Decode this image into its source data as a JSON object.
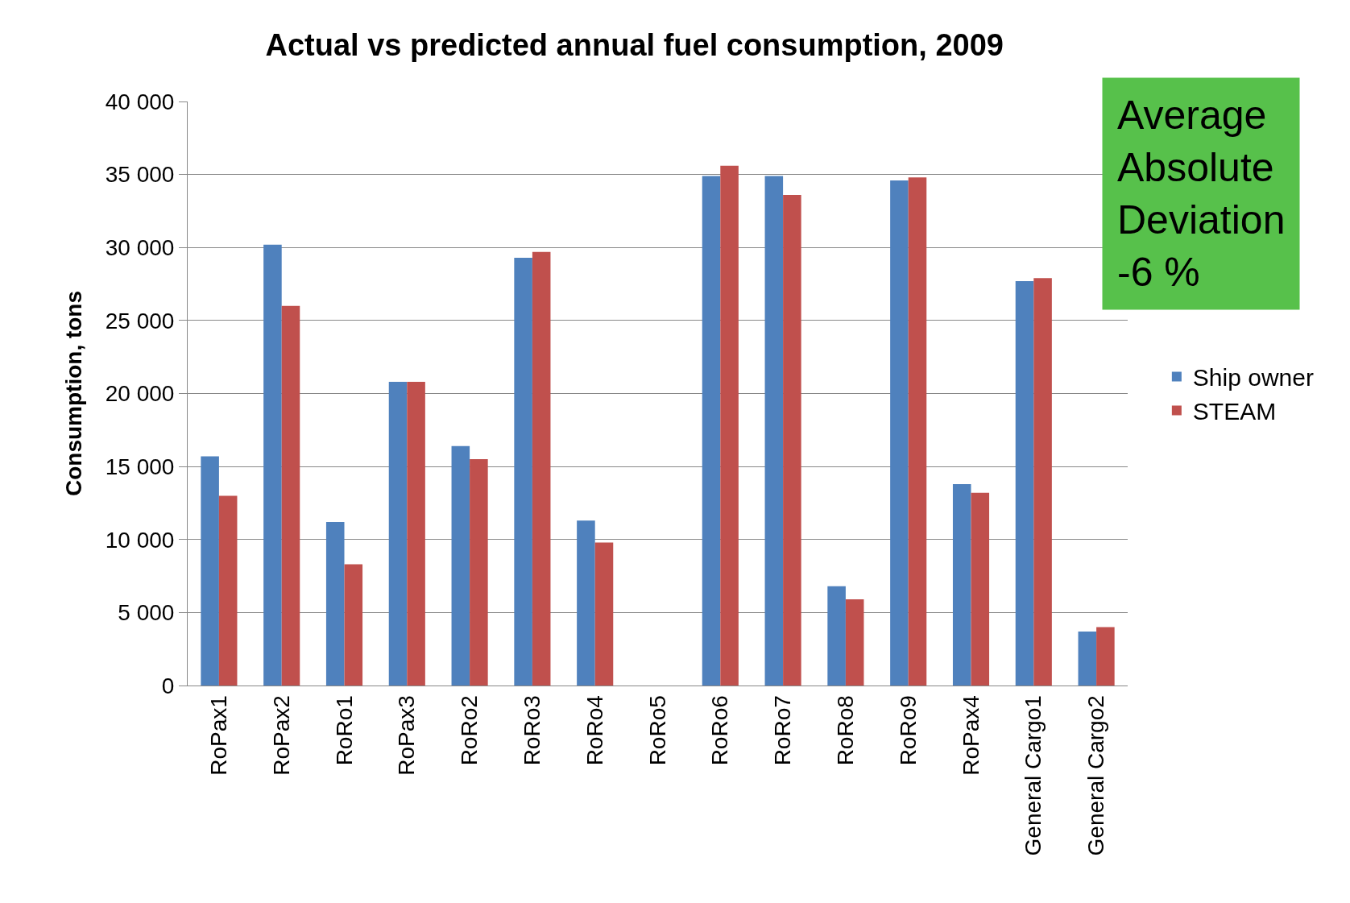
{
  "chart_data": {
    "type": "bar",
    "title": "Actual vs predicted annual fuel consumption, 2009",
    "ylabel": "Consumption, tons",
    "categories": [
      "RoPax1",
      "RoPax2",
      "RoRo1",
      "RoPax3",
      "RoRo2",
      "RoRo3",
      "RoRo4",
      "RoRo5",
      "RoRo6",
      "RoRo7",
      "RoRo8",
      "RoRo9",
      "RoPax4",
      "General Cargo1",
      "General Cargo2"
    ],
    "series": [
      {
        "name": "Ship owner",
        "color": "#4f81bd",
        "values": [
          15700,
          30200,
          11200,
          20800,
          16400,
          29300,
          11300,
          null,
          34900,
          34900,
          6800,
          34600,
          13800,
          27700,
          3700
        ]
      },
      {
        "name": "STEAM",
        "color": "#c0504d",
        "values": [
          13000,
          26000,
          8300,
          20800,
          15500,
          29700,
          9800,
          null,
          35600,
          33600,
          5900,
          34800,
          13200,
          27900,
          4000
        ]
      }
    ],
    "ylim": [
      0,
      40000
    ],
    "yticks": [
      {
        "value": 0,
        "label": "0"
      },
      {
        "value": 5000,
        "label": "5 000"
      },
      {
        "value": 10000,
        "label": "10 000"
      },
      {
        "value": 15000,
        "label": "15 000"
      },
      {
        "value": 20000,
        "label": "20 000"
      },
      {
        "value": 25000,
        "label": "25 000"
      },
      {
        "value": 30000,
        "label": "30 000"
      },
      {
        "value": 35000,
        "label": "35 000"
      },
      {
        "value": 40000,
        "label": "40 000"
      }
    ],
    "grid": "y",
    "legend": "right",
    "annotations": [
      "Average Absolute Deviation -6 %"
    ]
  }
}
